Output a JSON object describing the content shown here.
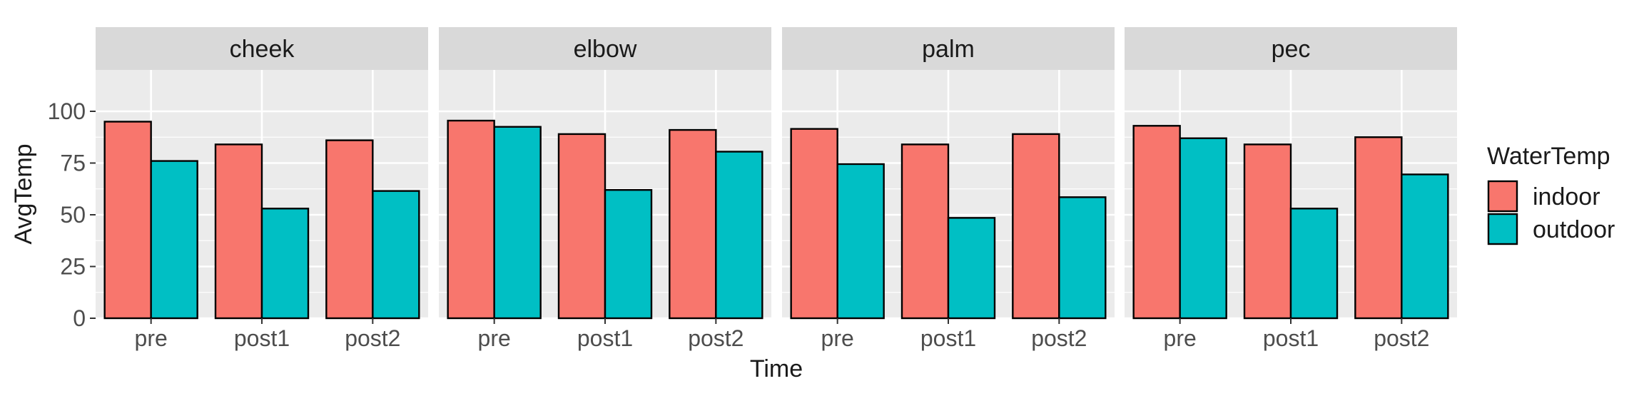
{
  "chart_data": {
    "type": "bar",
    "xlabel": "Time",
    "ylabel": "AvgTemp",
    "ylim": [
      0,
      120
    ],
    "yticks": [
      0,
      25,
      50,
      75,
      100
    ],
    "categories": [
      "pre",
      "post1",
      "post2"
    ],
    "grid": true,
    "legend": {
      "title": "WaterTemp",
      "position": "right",
      "entries": [
        {
          "name": "indoor",
          "color": "#F8766D"
        },
        {
          "name": "outdoor",
          "color": "#00BFC4"
        }
      ]
    },
    "panels": [
      {
        "facet": "cheek",
        "series": [
          {
            "name": "indoor",
            "values": [
              95,
              84,
              86
            ]
          },
          {
            "name": "outdoor",
            "values": [
              76,
              53,
              61.5
            ]
          }
        ]
      },
      {
        "facet": "elbow",
        "series": [
          {
            "name": "indoor",
            "values": [
              95.5,
              89,
              91
            ]
          },
          {
            "name": "outdoor",
            "values": [
              92.5,
              62,
              80.5
            ]
          }
        ]
      },
      {
        "facet": "palm",
        "series": [
          {
            "name": "indoor",
            "values": [
              91.5,
              84,
              89
            ]
          },
          {
            "name": "outdoor",
            "values": [
              74.5,
              48.5,
              58.5
            ]
          }
        ]
      },
      {
        "facet": "pec",
        "series": [
          {
            "name": "indoor",
            "values": [
              93,
              84,
              87.5
            ]
          },
          {
            "name": "outdoor",
            "values": [
              87,
              53,
              69.5
            ]
          }
        ]
      }
    ]
  }
}
